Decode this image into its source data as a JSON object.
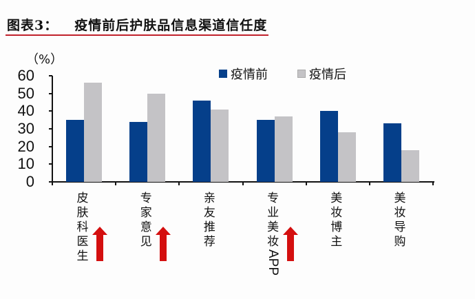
{
  "header": {
    "figure_label": "图表3：",
    "title": "疫情前后护肤品信息渠道信任度"
  },
  "colors": {
    "before": "#053f8a",
    "after": "#c4c3c6",
    "accent_rule": "#c0202a",
    "arrow": "#d40f0f"
  },
  "chart_data": {
    "type": "bar",
    "title": "疫情前后护肤品信息渠道信任度",
    "ylabel": "（%）",
    "xlabel": "",
    "ylim": [
      0,
      60
    ],
    "yticks": [
      "0",
      "10",
      "20",
      "30",
      "40",
      "50",
      "60"
    ],
    "grid": false,
    "legend_position": "top-center",
    "categories": [
      "皮肤科医生",
      "专家意见",
      "亲友推荐",
      "专业美妆APP",
      "美妆博主",
      "美妆导购"
    ],
    "series": [
      {
        "name": "疫情前",
        "values": [
          35,
          34,
          46,
          35,
          40,
          33
        ]
      },
      {
        "name": "疫情后",
        "values": [
          56,
          50,
          41,
          37,
          28,
          18
        ]
      }
    ],
    "annotations": [
      {
        "type": "up-arrow",
        "category": "皮肤科医生"
      },
      {
        "type": "up-arrow",
        "category": "专家意见"
      },
      {
        "type": "up-arrow",
        "category": "专业美妆APP"
      }
    ]
  },
  "legend": {
    "before_label": "疫情前",
    "after_label": "疫情后"
  },
  "axis": {
    "unit": "（%）"
  },
  "categories_display": [
    {
      "chars": "皮肤科医生",
      "latin": ""
    },
    {
      "chars": "专家意见",
      "latin": ""
    },
    {
      "chars": "亲友推荐",
      "latin": ""
    },
    {
      "chars": "专业美妆",
      "latin": "APP"
    },
    {
      "chars": "美妆博主",
      "latin": ""
    },
    {
      "chars": "美妆导购",
      "latin": ""
    }
  ]
}
